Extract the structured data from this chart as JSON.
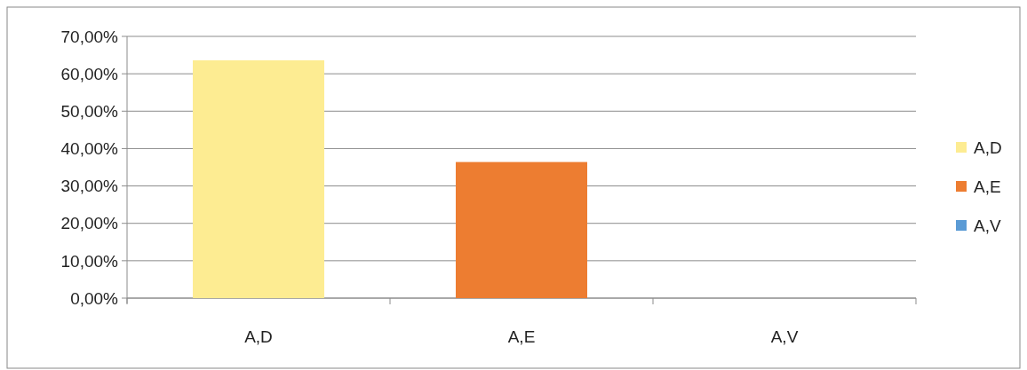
{
  "chart_data": {
    "type": "bar",
    "categories": [
      "A,D",
      "A,E",
      "A,V"
    ],
    "series": [
      {
        "name": "A,D",
        "color": "#fdec92",
        "values": [
          63.6,
          null,
          null
        ]
      },
      {
        "name": "A,E",
        "color": "#ed7d31",
        "values": [
          null,
          36.4,
          null
        ]
      },
      {
        "name": "A,V",
        "color": "#5b9bd5",
        "values": [
          null,
          null,
          0
        ]
      }
    ],
    "ylim": [
      0,
      70
    ],
    "yticks": [
      {
        "value": 0,
        "label": "0,00%"
      },
      {
        "value": 10,
        "label": "10,00%"
      },
      {
        "value": 20,
        "label": "20,00%"
      },
      {
        "value": 30,
        "label": "30,00%"
      },
      {
        "value": 40,
        "label": "40,00%"
      },
      {
        "value": 50,
        "label": "50,00%"
      },
      {
        "value": 60,
        "label": "60,00%"
      },
      {
        "value": 70,
        "label": "70,00%"
      }
    ],
    "grid": "y",
    "legend": "right"
  }
}
